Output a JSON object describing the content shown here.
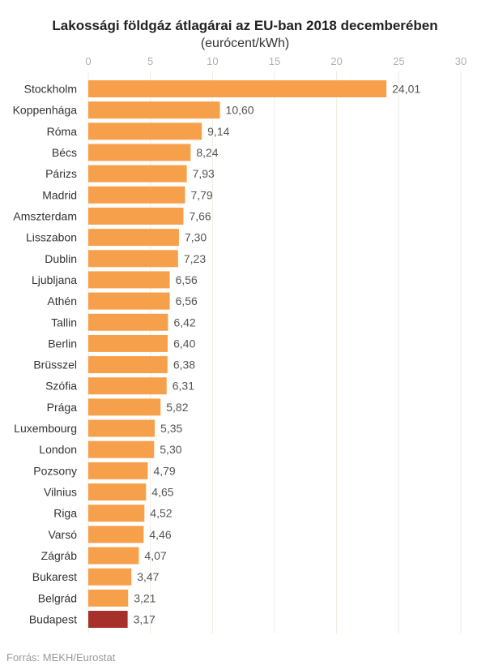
{
  "chart_data": {
    "type": "bar",
    "orientation": "horizontal",
    "title": "Lakossági földgáz átlagárai az EU-ban 2018 decemberében",
    "subtitle": "(eurócent/kWh)",
    "xlim": [
      0,
      30
    ],
    "xticks": [
      0,
      5,
      10,
      15,
      20,
      25,
      30
    ],
    "grid": true,
    "categories": [
      "Stockholm",
      "Koppenhága",
      "Róma",
      "Bécs",
      "Párizs",
      "Madrid",
      "Amszterdam",
      "Lisszabon",
      "Dublin",
      "Ljubljana",
      "Athén",
      "Tallin",
      "Berlin",
      "Brüsszel",
      "Szófia",
      "Prága",
      "Luxembourg",
      "London",
      "Pozsony",
      "Vilnius",
      "Riga",
      "Varsó",
      "Zágráb",
      "Bukarest",
      "Belgrád",
      "Budapest"
    ],
    "values": [
      24.01,
      10.6,
      9.14,
      8.24,
      7.93,
      7.79,
      7.66,
      7.3,
      7.23,
      6.56,
      6.56,
      6.42,
      6.4,
      6.38,
      6.31,
      5.82,
      5.35,
      5.3,
      4.79,
      4.65,
      4.52,
      4.46,
      4.07,
      3.47,
      3.21,
      3.17
    ],
    "value_labels": [
      "24,01",
      "10,60",
      "9,14",
      "8,24",
      "7,93",
      "7,79",
      "7,66",
      "7,30",
      "7,23",
      "6,56",
      "6,56",
      "6,42",
      "6,40",
      "6,38",
      "6,31",
      "5,82",
      "5,35",
      "5,30",
      "4,79",
      "4,65",
      "4,52",
      "4,46",
      "4,07",
      "3,47",
      "3,21",
      "3,17"
    ],
    "highlight": "Budapest"
  },
  "colors": {
    "bar": "#f7a04b",
    "highlight": "#a6302a",
    "grid": "#f0ebe0",
    "tick": "#b0b0b0",
    "label": "#333333",
    "value": "#555555"
  },
  "source": "Forrás: MEKH/Eurostat"
}
